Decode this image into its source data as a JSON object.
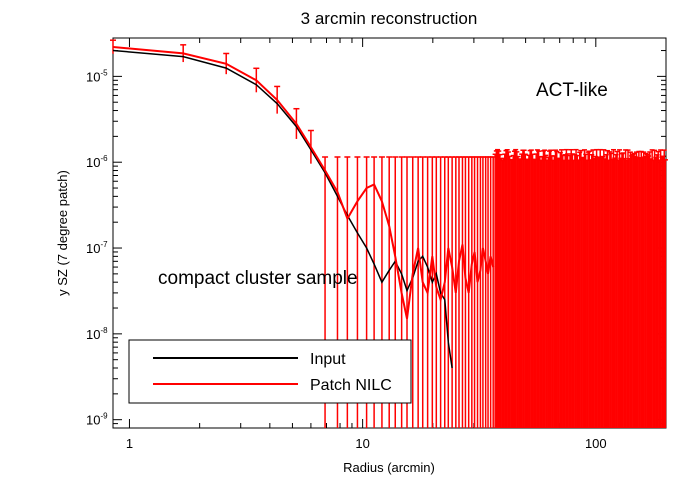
{
  "chart_data": {
    "type": "line",
    "title": "3 arcmin reconstruction",
    "xlabel": "Radius (arcmin)",
    "ylabel": "y SZ (7 degree patch)",
    "x_scale": "log",
    "y_scale": "log",
    "xlim": [
      0.85,
      200
    ],
    "ylim": [
      8e-10,
      2.8e-05
    ],
    "x_ticks": [
      {
        "value": 1,
        "label": "1"
      },
      {
        "value": 10,
        "label": "10"
      },
      {
        "value": 100,
        "label": "100"
      }
    ],
    "y_ticks": [
      {
        "value": 1e-09,
        "base": "10",
        "exp": "-9"
      },
      {
        "value": 1e-08,
        "base": "10",
        "exp": "-8"
      },
      {
        "value": 1e-07,
        "base": "10",
        "exp": "-7"
      },
      {
        "value": 1e-06,
        "base": "10",
        "exp": "-6"
      },
      {
        "value": 1e-05,
        "base": "10",
        "exp": "-5"
      }
    ],
    "annotations": [
      "ACT-like",
      "compact cluster sample"
    ],
    "grid": false,
    "legend_position": "bottom-left",
    "legend": [
      {
        "name": "Input",
        "color": "#000000"
      },
      {
        "name": "Patch NILC",
        "color": "#ff0000"
      }
    ],
    "series": [
      {
        "name": "Input",
        "color": "#000000",
        "x": [
          0.85,
          1.7,
          2.6,
          3.5,
          4.3,
          5.2,
          6.0,
          6.9,
          7.8,
          8.6,
          9.5,
          10.4,
          11.2,
          12.1,
          13.0,
          13.8,
          14.7,
          15.5,
          16.4,
          17.3,
          18.1,
          19.0,
          19.9,
          20.7,
          21.6,
          22.5,
          23.3,
          24.2
        ],
        "y": [
          2e-05,
          1.7e-05,
          1.25e-05,
          8e-06,
          4.8e-06,
          2.6e-06,
          1.4e-06,
          7.5e-07,
          4e-07,
          2.4e-07,
          1.5e-07,
          1e-07,
          6.5e-08,
          4e-08,
          5.5e-08,
          7e-08,
          5e-08,
          3.2e-08,
          4.5e-08,
          7e-08,
          8e-08,
          6e-08,
          4e-08,
          5e-08,
          3e-08,
          2.5e-08,
          8e-09,
          4e-09
        ]
      },
      {
        "name": "Patch NILC",
        "color": "#ff0000",
        "x": [
          0.85,
          1.7,
          2.6,
          3.5,
          4.3,
          5.2,
          6.0,
          6.9,
          7.8,
          8.6,
          9.5,
          10.4,
          11.2,
          12.1,
          13.0,
          13.8,
          14.7,
          15.5,
          16.4,
          17.3,
          18.1,
          19.0,
          19.9,
          20.7,
          21.6,
          22.5,
          23.3,
          24.2,
          25.1,
          25.9,
          26.8,
          27.6,
          28.5,
          29.4,
          30.2,
          31.1,
          32.0,
          32.8,
          33.7,
          34.5,
          35.4,
          36.3
        ],
        "y": [
          2.2e-05,
          1.85e-05,
          1.4e-05,
          9e-06,
          5.3e-06,
          2.8e-06,
          1.5e-06,
          8e-07,
          4.5e-07,
          2.2e-07,
          3.5e-07,
          5e-07,
          5.5e-07,
          3.5e-07,
          1.8e-07,
          8e-08,
          3e-08,
          1.5e-08,
          5e-08,
          1e-07,
          4e-08,
          3e-08,
          8e-08,
          3.5e-08,
          2.5e-08,
          4e-08,
          1e-07,
          6e-08,
          3e-08,
          7e-08,
          1.1e-07,
          4.5e-08,
          3e-08,
          6.5e-08,
          9e-08,
          4e-08,
          5.5e-08,
          1e-07,
          7e-08,
          5e-08,
          8e-08,
          6e-08
        ]
      }
    ]
  }
}
